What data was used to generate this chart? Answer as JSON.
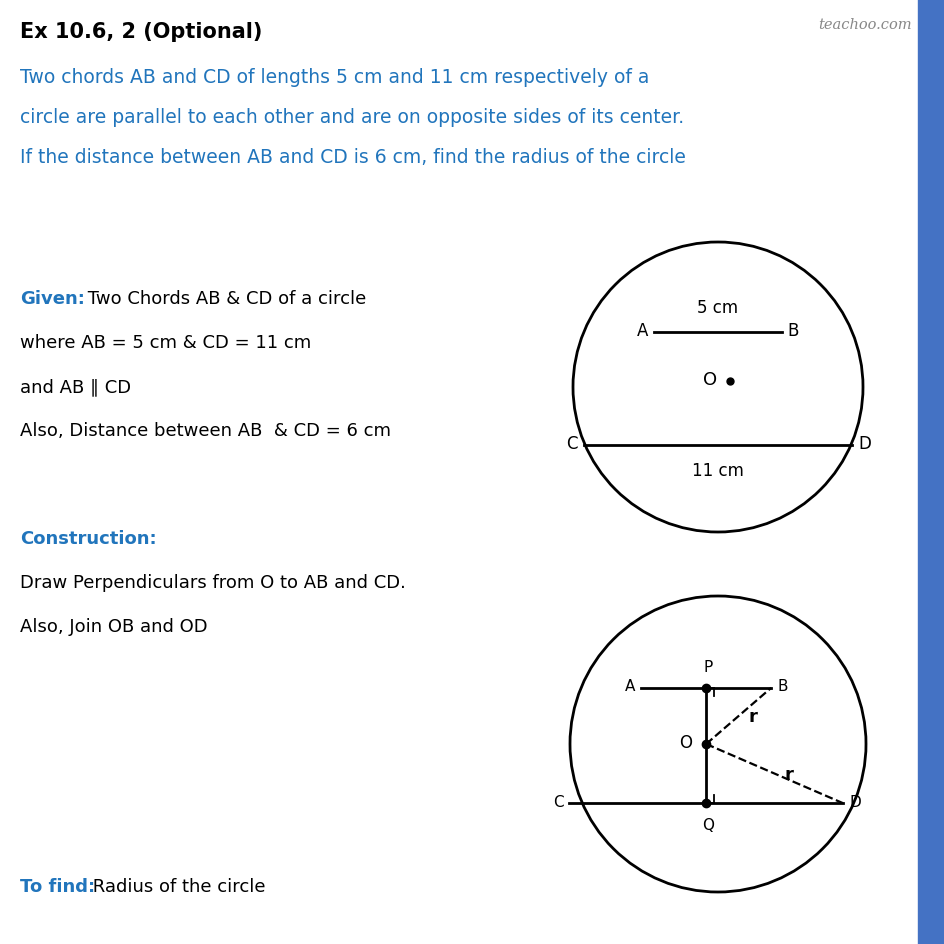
{
  "title": "Ex 10.6, 2 (Optional)",
  "teachoo_text": "teachoo.com",
  "problem_text_lines": [
    "Two chords AB and CD of lengths 5 cm and 11 cm respectively of a",
    "circle are parallel to each other and are on opposite sides of its center.",
    "If the distance between AB and CD is 6 cm, find the radius of the circle"
  ],
  "given_label": "Given:",
  "given_text": " Two Chords AB & CD of a circle",
  "where_text": "where AB = 5 cm & CD = 11 cm",
  "and_text": "and AB ∥ CD",
  "also_text": "Also, Distance between AB  & CD = 6 cm",
  "construction_label": "Construction:",
  "construction_text1": "Draw Perpendiculars from O to AB and CD.",
  "construction_text2": "Also, Join OB and OD",
  "tofind_label": "To find:",
  "tofind_text": " Radius of the circle",
  "blue_color": "#2175BC",
  "text_color": "#000000",
  "bg_color": "#ffffff",
  "sidebar_color": "#4472C4",
  "teachoo_color": "#888888"
}
